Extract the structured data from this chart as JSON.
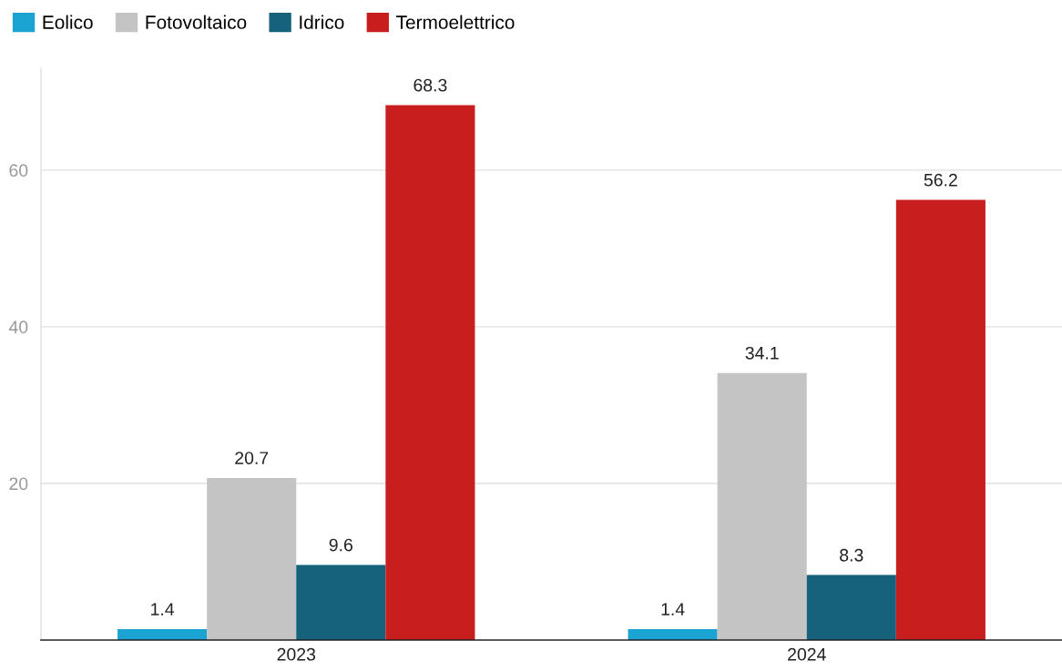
{
  "chart_data": {
    "type": "bar",
    "categories": [
      "2023",
      "2024"
    ],
    "series": [
      {
        "name": "Eolico",
        "color": "#1ba3d1",
        "values": [
          1.4,
          1.4
        ]
      },
      {
        "name": "Fotovoltaico",
        "color": "#c4c4c4",
        "values": [
          20.7,
          34.1
        ]
      },
      {
        "name": "Idrico",
        "color": "#16627c",
        "values": [
          9.6,
          8.3
        ]
      },
      {
        "name": "Termoelettrico",
        "color": "#c81e1e",
        "values": [
          68.3,
          56.2
        ]
      }
    ],
    "ylim": [
      0,
      73
    ],
    "yticks": [
      20,
      40,
      60
    ],
    "grid": "y",
    "legend": "top left",
    "data_labels": true
  }
}
